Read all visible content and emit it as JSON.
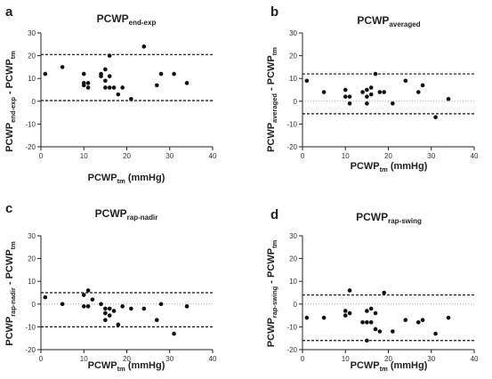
{
  "panel_letters": [
    "a",
    "b",
    "c",
    "d"
  ],
  "x_axis": {
    "main": "PCWP",
    "sub": "tm",
    "unit": " (mmHg)",
    "ticks": [
      "0",
      "10",
      "20",
      "30",
      "40"
    ]
  },
  "y_axis": {
    "ticks": [
      "30",
      "20",
      "10",
      "0",
      "-10",
      "-20"
    ]
  },
  "chart_data": [
    {
      "type": "scatter",
      "letter": "a",
      "title_main": "PCWP",
      "title_sub": "end-exp",
      "ylabel_main1": "PCWP",
      "ylabel_sub1": "end-exp",
      "ylabel_main2": " - PCWP",
      "ylabel_sub2": "tm",
      "xlabel": "PCWPtm (mmHg)",
      "xlim": [
        0,
        40
      ],
      "ylim": [
        -20,
        30
      ],
      "xticks": [
        0,
        10,
        20,
        30,
        40
      ],
      "yticks": [
        -20,
        -10,
        0,
        10,
        20,
        30
      ],
      "reference_lines": [
        20.5,
        0.3
      ],
      "points": [
        [
          1,
          12
        ],
        [
          5,
          15
        ],
        [
          10,
          12
        ],
        [
          10,
          8
        ],
        [
          10,
          7
        ],
        [
          11,
          6
        ],
        [
          11,
          8
        ],
        [
          14,
          11
        ],
        [
          14,
          12
        ],
        [
          15,
          14
        ],
        [
          15,
          9
        ],
        [
          15,
          6
        ],
        [
          16,
          20
        ],
        [
          16,
          11
        ],
        [
          16,
          6
        ],
        [
          17,
          6
        ],
        [
          18,
          3
        ],
        [
          19,
          6
        ],
        [
          21,
          1
        ],
        [
          24,
          24
        ],
        [
          27,
          7
        ],
        [
          28,
          12
        ],
        [
          31,
          12
        ],
        [
          34,
          8
        ]
      ]
    },
    {
      "type": "scatter",
      "letter": "b",
      "title_main": "PCWP",
      "title_sub": "averaged",
      "ylabel_main1": "PCWP",
      "ylabel_sub1": "averaged",
      "ylabel_main2": " - PCWP",
      "ylabel_sub2": "tm",
      "xlabel": "PCWPtm (mmHg)",
      "xlim": [
        0,
        40
      ],
      "ylim": [
        -20,
        30
      ],
      "xticks": [
        0,
        10,
        20,
        30,
        40
      ],
      "yticks": [
        -20,
        -10,
        0,
        10,
        20,
        30
      ],
      "reference_lines": [
        12,
        -5.5
      ],
      "points": [
        [
          1,
          9
        ],
        [
          5,
          4
        ],
        [
          10,
          5
        ],
        [
          10,
          2
        ],
        [
          11,
          2
        ],
        [
          11,
          -1
        ],
        [
          14,
          4
        ],
        [
          15,
          5
        ],
        [
          15,
          2
        ],
        [
          15,
          -1
        ],
        [
          16,
          6
        ],
        [
          16,
          3
        ],
        [
          17,
          12
        ],
        [
          18,
          4
        ],
        [
          19,
          4
        ],
        [
          21,
          -1
        ],
        [
          24,
          9
        ],
        [
          27,
          4
        ],
        [
          28,
          7
        ],
        [
          31,
          -7
        ],
        [
          34,
          1
        ]
      ]
    },
    {
      "type": "scatter",
      "letter": "c",
      "title_main": "PCWP",
      "title_sub": "rap-nadir",
      "ylabel_main1": "PCWP",
      "ylabel_sub1": "rap-nadir",
      "ylabel_main2": " - PCWP",
      "ylabel_sub2": "tm",
      "xlabel": "PCWPtm (mmHg)",
      "xlim": [
        0,
        40
      ],
      "ylim": [
        -20,
        30
      ],
      "xticks": [
        0,
        10,
        20,
        30,
        40
      ],
      "yticks": [
        -20,
        -10,
        0,
        10,
        20,
        30
      ],
      "reference_lines": [
        5,
        -10
      ],
      "points": [
        [
          1,
          3
        ],
        [
          5,
          0
        ],
        [
          10,
          4
        ],
        [
          10,
          -1
        ],
        [
          11,
          6
        ],
        [
          11,
          -1
        ],
        [
          12,
          2
        ],
        [
          14,
          0
        ],
        [
          15,
          -2
        ],
        [
          15,
          -4
        ],
        [
          15,
          -7
        ],
        [
          16,
          -2
        ],
        [
          16,
          -5
        ],
        [
          17,
          -3
        ],
        [
          18,
          -9
        ],
        [
          19,
          -1
        ],
        [
          21,
          -2
        ],
        [
          24,
          -2
        ],
        [
          27,
          -7
        ],
        [
          28,
          0
        ],
        [
          31,
          -13
        ],
        [
          34,
          -1
        ]
      ]
    },
    {
      "type": "scatter",
      "letter": "d",
      "title_main": "PCWP",
      "title_sub": "rap-swing",
      "ylabel_main1": "PCWP",
      "ylabel_sub1": "rap-swing",
      "ylabel_main2": " - PCWP",
      "ylabel_sub2": "tm",
      "xlabel": "PCWPtm (mmHg)",
      "xlim": [
        0,
        40
      ],
      "ylim": [
        -20,
        30
      ],
      "xticks": [
        0,
        10,
        20,
        30,
        40
      ],
      "yticks": [
        -20,
        -10,
        0,
        10,
        20,
        30
      ],
      "reference_lines": [
        4,
        -16
      ],
      "points": [
        [
          1,
          -6
        ],
        [
          5,
          -6
        ],
        [
          10,
          -5
        ],
        [
          10,
          -3
        ],
        [
          11,
          6
        ],
        [
          11,
          -4
        ],
        [
          14,
          -8
        ],
        [
          15,
          -3
        ],
        [
          15,
          -8
        ],
        [
          15,
          -16
        ],
        [
          16,
          -2
        ],
        [
          16,
          -8
        ],
        [
          17,
          -11
        ],
        [
          17,
          -4
        ],
        [
          18,
          -12
        ],
        [
          19,
          5
        ],
        [
          21,
          -12
        ],
        [
          24,
          -7
        ],
        [
          27,
          -8
        ],
        [
          28,
          -7
        ],
        [
          31,
          -13
        ],
        [
          34,
          -6
        ]
      ]
    }
  ]
}
